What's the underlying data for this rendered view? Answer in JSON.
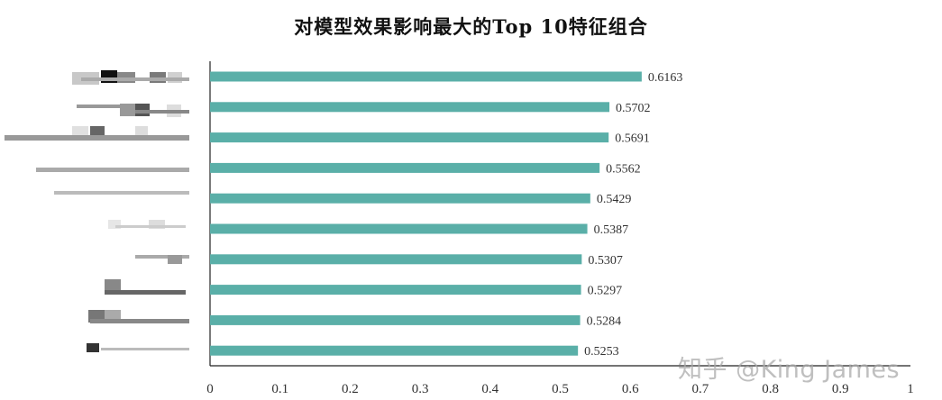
{
  "chart_data": {
    "type": "bar",
    "orientation": "horizontal",
    "title": "对模型效果影响最大的Top 10特征组合",
    "categories": [
      "",
      "",
      "",
      "",
      "",
      "",
      "",
      "",
      "",
      ""
    ],
    "values": [
      0.6163,
      0.5702,
      0.5691,
      0.5562,
      0.5429,
      0.5387,
      0.5307,
      0.5297,
      0.5284,
      0.5253
    ],
    "data_labels": [
      "0.6163",
      "0.5702",
      "0.5691",
      "0.5562",
      "0.5429",
      "0.5387",
      "0.5307",
      "0.5297",
      "0.5284",
      "0.5253"
    ],
    "xlim": [
      0,
      1
    ],
    "xticks": [
      "0",
      "0.1",
      "0.2",
      "0.3",
      "0.4",
      "0.5",
      "0.6",
      "0.7",
      "0.8",
      "0.9",
      "1"
    ],
    "xlabel": "",
    "ylabel": "",
    "grid": false,
    "legend": "none",
    "bar_color": "#5aafa8"
  },
  "watermark": "知乎 @King James"
}
